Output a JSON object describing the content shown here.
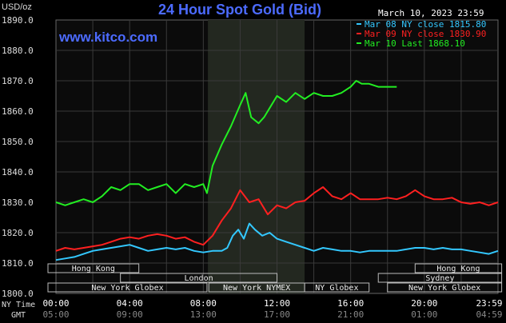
{
  "chart_data": {
    "type": "line",
    "title": "24 Hour Spot Gold (Bid)",
    "unit_label": "USD/oz",
    "watermark": "www.kitco.com",
    "date_label": "March 10, 2023 23:59",
    "ylim": [
      1800,
      1890
    ],
    "y_ticks": [
      "1890.0",
      "1880.0",
      "1870.0",
      "1860.0",
      "1850.0",
      "1840.0",
      "1830.0",
      "1820.0",
      "1810.0",
      "1800.0"
    ],
    "x_row1_label": "NY Time",
    "x_row2_label": "GMT",
    "x_ticks_ny": [
      "00:00",
      "04:00",
      "08:00",
      "12:00",
      "16:00",
      "20:00",
      "23:59"
    ],
    "x_ticks_gmt": [
      "05:00",
      "09:00",
      "13:00",
      "17:00",
      "21:00",
      "01:00",
      "04:59"
    ],
    "highlight_hours": [
      8.25,
      13.5
    ],
    "legend": [
      {
        "text": "Mar 08 NY close 1815.80",
        "color": "#33c8ff"
      },
      {
        "text": "Mar 09 NY close 1830.90",
        "color": "#ff2020"
      },
      {
        "text": "Mar 10 Last 1868.10",
        "color": "#22ee22"
      }
    ],
    "sessions": [
      {
        "name": "Hong Kong",
        "start": -0.5,
        "end": 4.5,
        "row": 0
      },
      {
        "name": "Hong Kong",
        "start": 19.5,
        "end": 24.2,
        "row": 0
      },
      {
        "name": "London",
        "start": 3.5,
        "end": 12.0,
        "row": 1
      },
      {
        "name": "Sydney",
        "start": 17.5,
        "end": 24.2,
        "row": 1
      },
      {
        "name": "New York Globex",
        "start": -0.5,
        "end": 8.2,
        "row": 2
      },
      {
        "name": "New York NYMEX",
        "start": 8.3,
        "end": 13.5,
        "row": 2
      },
      {
        "name": "NY Globex",
        "start": 13.5,
        "end": 17.0,
        "row": 2
      },
      {
        "name": "New York Globex",
        "start": 18.0,
        "end": 24.2,
        "row": 2
      }
    ],
    "series": [
      {
        "name": "Mar 08",
        "color": "#33c8ff",
        "x": [
          0,
          0.5,
          1,
          1.5,
          2,
          2.5,
          3,
          3.5,
          4,
          4.5,
          5,
          5.5,
          6,
          6.5,
          7,
          7.5,
          8,
          8.5,
          9,
          9.3,
          9.6,
          9.9,
          10.2,
          10.5,
          10.8,
          11.2,
          11.6,
          12,
          12.5,
          13,
          13.5,
          14,
          14.5,
          15,
          15.5,
          16,
          16.5,
          17,
          17.5,
          18,
          18.5,
          19,
          19.5,
          20,
          20.5,
          21,
          21.5,
          22,
          22.5,
          23,
          23.5,
          24
        ],
        "y": [
          1811,
          1811.5,
          1812,
          1813,
          1814,
          1814.5,
          1815,
          1815.5,
          1816,
          1815,
          1814,
          1814.5,
          1815,
          1814.5,
          1815,
          1814,
          1813.5,
          1814,
          1814,
          1815,
          1819,
          1821,
          1818,
          1823,
          1821,
          1819,
          1820,
          1818,
          1817,
          1816,
          1815,
          1814,
          1815,
          1814.5,
          1814,
          1814,
          1813.5,
          1814,
          1814,
          1814,
          1814,
          1814.5,
          1815,
          1815,
          1814.5,
          1815,
          1814.5,
          1814.5,
          1814,
          1813.5,
          1813,
          1814
        ]
      },
      {
        "name": "Mar 09",
        "color": "#ff2020",
        "x": [
          0,
          0.5,
          1,
          1.5,
          2,
          2.5,
          3,
          3.5,
          4,
          4.5,
          5,
          5.5,
          6,
          6.5,
          7,
          7.5,
          8,
          8.5,
          9,
          9.5,
          10,
          10.5,
          11,
          11.5,
          12,
          12.5,
          13,
          13.5,
          14,
          14.5,
          15,
          15.5,
          16,
          16.5,
          17,
          17.5,
          18,
          18.5,
          19,
          19.5,
          20,
          20.5,
          21,
          21.5,
          22,
          22.5,
          23,
          23.5,
          24
        ],
        "y": [
          1814,
          1815,
          1814.5,
          1815,
          1815.5,
          1816,
          1817,
          1818,
          1818.5,
          1818,
          1819,
          1819.5,
          1819,
          1818,
          1818.5,
          1817,
          1816,
          1819,
          1824,
          1828,
          1834,
          1830,
          1831,
          1826,
          1829,
          1828,
          1830,
          1830.5,
          1833,
          1835,
          1832,
          1831,
          1833,
          1831,
          1831,
          1831,
          1831.5,
          1831,
          1832,
          1834,
          1832,
          1831,
          1831,
          1831.5,
          1830,
          1829.5,
          1830,
          1829,
          1830
        ]
      },
      {
        "name": "Mar 10",
        "color": "#22ee22",
        "x": [
          0,
          0.5,
          1,
          1.5,
          2,
          2.5,
          3,
          3.5,
          4,
          4.5,
          5,
          5.5,
          6,
          6.5,
          7,
          7.5,
          8,
          8.2,
          8.5,
          9,
          9.5,
          10,
          10.3,
          10.6,
          11,
          11.3,
          11.6,
          12,
          12.5,
          13,
          13.5,
          14,
          14.5,
          15,
          15.5,
          16,
          16.3,
          16.6,
          17,
          17.5,
          18,
          18.5
        ],
        "y": [
          1830,
          1829,
          1830,
          1831,
          1830,
          1832,
          1835,
          1834,
          1836,
          1836,
          1834,
          1835,
          1836,
          1833,
          1836,
          1835,
          1836,
          1833,
          1842,
          1849,
          1855,
          1862,
          1866,
          1858,
          1856,
          1858,
          1861,
          1865,
          1863,
          1866,
          1864,
          1866,
          1865,
          1865,
          1866,
          1868,
          1870,
          1869,
          1869,
          1868,
          1868,
          1868
        ]
      }
    ]
  }
}
